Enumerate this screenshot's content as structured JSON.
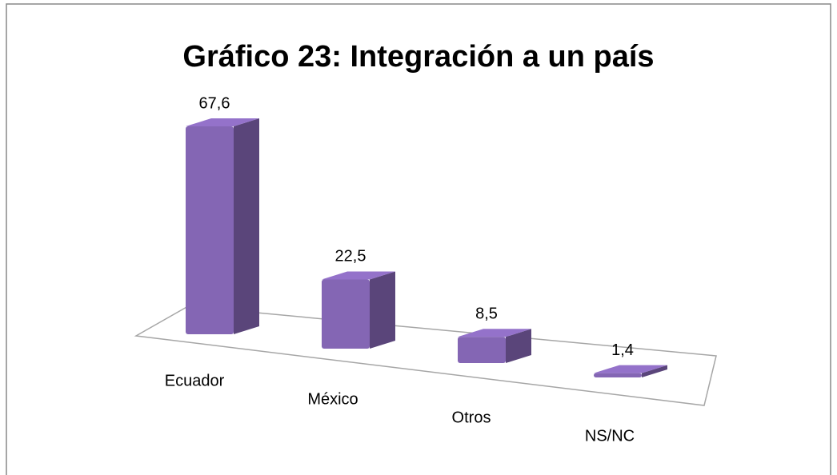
{
  "chart_data": {
    "type": "bar3d",
    "title": "Gráfico 23: Integración a un país",
    "categories": [
      "Ecuador",
      "México",
      "Otros",
      "NS/NC"
    ],
    "values": [
      67.6,
      22.5,
      8.5,
      1.4
    ],
    "value_labels": [
      "67,6",
      "22,5",
      "8,5",
      "1,4"
    ],
    "color": "#8466b4"
  }
}
